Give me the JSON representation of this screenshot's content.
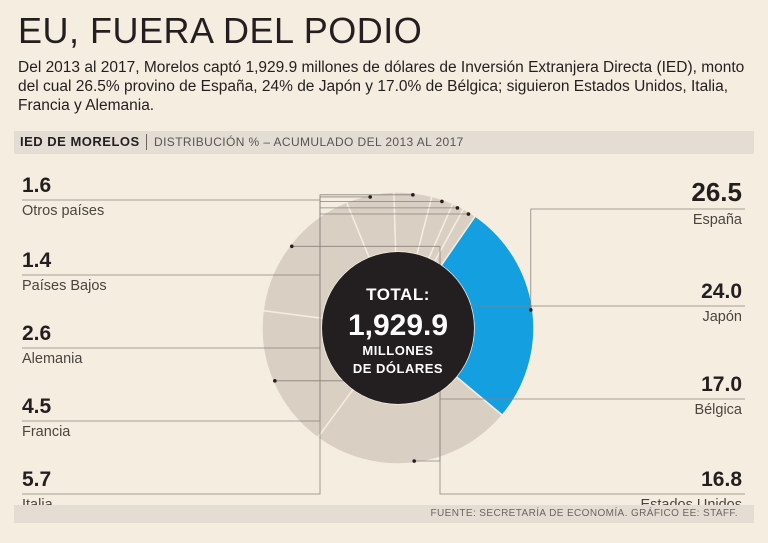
{
  "header": {
    "title": "EU, FUERA DEL PODIO",
    "subtitle": "Del 2013 al 2017, Morelos captó 1,929.9 millones de dólares de Inversión Extranjera Directa (IED), monto del cual 26.5% provino de España, 24% de Japón y 17.0% de Bélgica; siguieron Estados Unidos, Italia, Francia y Alemania."
  },
  "band": {
    "label": "IED DE MORELOS",
    "sub": "DISTRIBUCIÓN % – ACUMULADO DEL 2013 AL 2017"
  },
  "center": {
    "label": "TOTAL:",
    "value": "1,929.9",
    "unit_line1": "MILLONES",
    "unit_line2": "DE DÓLARES"
  },
  "colors": {
    "highlight": "#139fe0",
    "slice": "#d9cfc2",
    "slice_stroke": "#f4ede0",
    "center": "#231f20",
    "leader": "#8a847d"
  },
  "chart_data": {
    "type": "pie",
    "title": "IED DE MORELOS",
    "subtitle": "DISTRIBUCIÓN % – ACUMULADO DEL 2013 AL 2017",
    "unit": "%",
    "total": 1929.9,
    "categories": [
      "España",
      "Japón",
      "Bélgica",
      "Estados Unidos",
      "Italia",
      "Francia",
      "Alemania",
      "Países Bajos",
      "Otros países"
    ],
    "values": [
      26.5,
      24.0,
      17.0,
      16.8,
      5.7,
      4.5,
      2.6,
      1.4,
      1.6
    ],
    "value_labels": [
      "26.5",
      "24.0",
      "17.0",
      "16.8",
      "5.7",
      "4.5",
      "2.6",
      "1.4",
      "1.6"
    ],
    "highlight": "España"
  },
  "footer": {
    "source": "FUENTE: SECRETARÍA DE ECONOMÍA.  GRÁFICO EE: STAFF."
  }
}
